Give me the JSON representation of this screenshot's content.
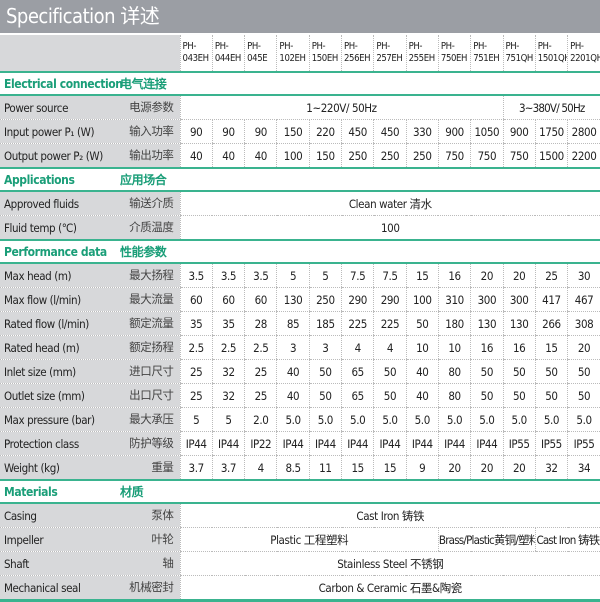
{
  "title": "Specification  详述",
  "models": [
    "PH-\n043EH",
    "PH-\n044EH",
    "PH-\n045E",
    "PH-\n102EH",
    "PH-\n150EH",
    "PH-\n256EH",
    "PH-\n257EH",
    "PH-\n255EH",
    "PH-\n750EH",
    "PH-\n751EH",
    "PH-\n751QH",
    "PH-\n1501QH",
    "PH-\n2201QH"
  ],
  "sections": [
    {
      "en": "Electrical connection",
      "cn": "电气连接",
      "rows": [
        {
          "en": "Power source",
          "cn": "电源参数",
          "spans": [
            {
              "text": "1~220V/ 50Hz",
              "cols": 10
            },
            {
              "text": "3~380V/ 50Hz",
              "cols": 3
            }
          ]
        },
        {
          "en": "Input power P₁ (W)",
          "cn": "输入功率",
          "values": [
            "90",
            "90",
            "90",
            "150",
            "220",
            "450",
            "450",
            "330",
            "900",
            "1050",
            "900",
            "1750",
            "2800"
          ]
        },
        {
          "en": "Output power P₂ (W)",
          "cn": "输出功率",
          "values": [
            "40",
            "40",
            "40",
            "100",
            "150",
            "250",
            "250",
            "250",
            "750",
            "750",
            "750",
            "1500",
            "2200"
          ]
        }
      ]
    },
    {
      "en": "Applications",
      "cn": "应用场合",
      "rows": [
        {
          "en": "Approved fluids",
          "cn": "输送介质",
          "spans": [
            {
              "text": "Clean water  清水",
              "cols": 13
            }
          ]
        },
        {
          "en": "Fluid temp (℃)",
          "cn": "介质温度",
          "spans": [
            {
              "text": "100",
              "cols": 13
            }
          ]
        }
      ]
    },
    {
      "en": "Performance data",
      "cn": "性能参数",
      "rows": [
        {
          "en": "Max head (m)",
          "cn": "最大扬程",
          "values": [
            "3.5",
            "3.5",
            "3.5",
            "5",
            "5",
            "7.5",
            "7.5",
            "15",
            "16",
            "20",
            "20",
            "25",
            "30"
          ]
        },
        {
          "en": "Max flow (l/min)",
          "cn": "最大流量",
          "values": [
            "60",
            "60",
            "60",
            "130",
            "250",
            "290",
            "290",
            "100",
            "310",
            "300",
            "300",
            "417",
            "467"
          ]
        },
        {
          "en": "Rated flow (l/min)",
          "cn": "额定流量",
          "values": [
            "35",
            "35",
            "28",
            "85",
            "185",
            "225",
            "225",
            "50",
            "180",
            "130",
            "130",
            "266",
            "308"
          ]
        },
        {
          "en": "Rated head (m)",
          "cn": "额定扬程",
          "values": [
            "2.5",
            "2.5",
            "2.5",
            "3",
            "3",
            "4",
            "4",
            "10",
            "10",
            "16",
            "16",
            "15",
            "20"
          ]
        },
        {
          "en": "Inlet size (mm)",
          "cn": "进口尺寸",
          "values": [
            "25",
            "32",
            "25",
            "40",
            "50",
            "65",
            "50",
            "40",
            "80",
            "50",
            "50",
            "50",
            "50"
          ]
        },
        {
          "en": "Outlet size (mm)",
          "cn": "出口尺寸",
          "values": [
            "25",
            "32",
            "25",
            "40",
            "50",
            "65",
            "50",
            "40",
            "80",
            "50",
            "50",
            "50",
            "50"
          ]
        },
        {
          "en": "Max pressure (bar)",
          "cn": "最大承压",
          "values": [
            "5",
            "5",
            "2.0",
            "5.0",
            "5.0",
            "5.0",
            "5.0",
            "5.0",
            "5.0",
            "5.0",
            "5.0",
            "5.0",
            "5.0"
          ]
        },
        {
          "en": "Protection class",
          "cn": "防护等级",
          "values": [
            "IP44",
            "IP44",
            "IP22",
            "IP44",
            "IP44",
            "IP44",
            "IP44",
            "IP44",
            "IP44",
            "IP44",
            "IP55",
            "IP55",
            "IP55"
          ]
        },
        {
          "en": "Weight  (kg)",
          "cn": "重量",
          "values": [
            "3.7",
            "3.7",
            "4",
            "8.5",
            "11",
            "15",
            "15",
            "9",
            "20",
            "20",
            "20",
            "32",
            "34"
          ]
        }
      ]
    },
    {
      "en": "Materials",
      "cn": "材质",
      "rows": [
        {
          "en": "Casing",
          "cn": "泵体",
          "spans": [
            {
              "text": "Cast Iron  铸铁",
              "cols": 13
            }
          ]
        },
        {
          "en": "Impeller",
          "cn": "叶轮",
          "spans": [
            {
              "text": "Plastic  工程塑料",
              "cols": 8
            },
            {
              "text": "Brass/Plastic黄铜/塑料",
              "cols": 3
            },
            {
              "text": "Cast Iron 铸铁",
              "cols": 2
            }
          ]
        },
        {
          "en": "Shaft",
          "cn": "轴",
          "spans": [
            {
              "text": "Stainless Steel  不锈钢",
              "cols": 13
            }
          ]
        },
        {
          "en": "Mechanical seal",
          "cn": "机械密封",
          "spans": [
            {
              "text": "Carbon & Ceramic  石墨&陶瓷",
              "cols": 13
            }
          ]
        }
      ]
    }
  ]
}
